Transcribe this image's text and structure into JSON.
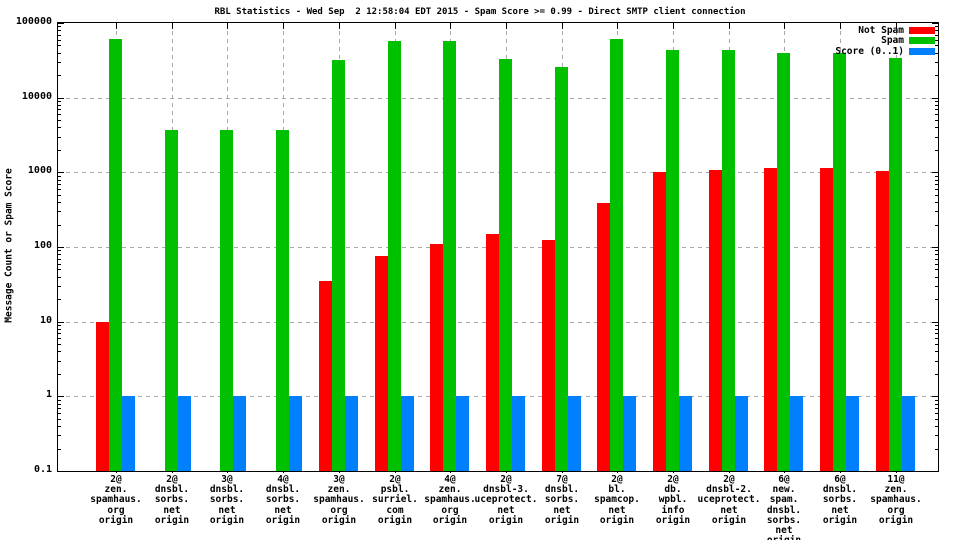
{
  "title": "RBL Statistics - Wed Sep  2 12:58:04 EDT 2015 - Spam Score >= 0.99 - Direct SMTP client connection",
  "y_axis_label": "Message Count or Spam Score",
  "chart_data": {
    "type": "bar",
    "title": "RBL Statistics - Wed Sep  2 12:58:04 EDT 2015 - Spam Score >= 0.99 - Direct SMTP client connection",
    "ylabel": "Message Count or Spam Score",
    "xlabel": "",
    "y_scale": "log",
    "ylim": [
      0.1,
      100000
    ],
    "yticks": [
      0.1,
      1,
      10,
      100,
      1000,
      10000,
      100000
    ],
    "ytick_labels": [
      "0.1",
      "1",
      "10",
      "100",
      "1000",
      "10000",
      "100000"
    ],
    "grid": true,
    "legend_position": "top-right-inside",
    "colors": {
      "not_spam": "#ff0000",
      "spam": "#00c000",
      "score": "#0080ff",
      "gridline": "#a8a8a8"
    },
    "categories": [
      [
        "2@",
        "zen.",
        "spamhaus.",
        "org",
        "origin"
      ],
      [
        "2@",
        "dnsbl.",
        "sorbs.",
        "net",
        "origin"
      ],
      [
        "3@",
        "dnsbl.",
        "sorbs.",
        "net",
        "origin"
      ],
      [
        "4@",
        "dnsbl.",
        "sorbs.",
        "net",
        "origin"
      ],
      [
        "3@",
        "zen.",
        "spamhaus.",
        "org",
        "origin"
      ],
      [
        "2@",
        "psbl.",
        "surriel.",
        "com",
        "origin"
      ],
      [
        "4@",
        "zen.",
        "spamhaus.",
        "org",
        "origin"
      ],
      [
        "2@",
        "dnsbl-3.",
        "uceprotect.",
        "net",
        "origin"
      ],
      [
        "7@",
        "dnsbl.",
        "sorbs.",
        "net",
        "origin"
      ],
      [
        "2@",
        "bl.",
        "spamcop.",
        "net",
        "origin"
      ],
      [
        "2@",
        "db.",
        "wpbl.",
        "info",
        "origin"
      ],
      [
        "2@",
        "dnsbl-2.",
        "uceprotect.",
        "net",
        "origin"
      ],
      [
        "6@",
        "new.",
        "spam.",
        "dnsbl.",
        "sorbs.",
        "net",
        "origin"
      ],
      [
        "6@",
        "dnsbl.",
        "sorbs.",
        "net",
        "origin"
      ],
      [
        "11@",
        "zen.",
        "spamhaus.",
        "org",
        "origin"
      ]
    ],
    "series": [
      {
        "name": "Not Spam",
        "color": "#ff0000",
        "values": [
          10,
          0,
          0,
          0,
          35,
          75,
          110,
          150,
          125,
          390,
          1000,
          1070,
          1140,
          1140,
          1050
        ]
      },
      {
        "name": "Spam",
        "color": "#00c000",
        "values": [
          62000,
          3700,
          3700,
          3700,
          32000,
          57000,
          58000,
          33000,
          26000,
          61000,
          43000,
          43000,
          40000,
          40000,
          34000
        ]
      },
      {
        "name": "Score (0..1)",
        "color": "#0080ff",
        "values": [
          1,
          1,
          1,
          1,
          1,
          1,
          1,
          1,
          1,
          1,
          1,
          1,
          1,
          1,
          1
        ]
      }
    ]
  }
}
